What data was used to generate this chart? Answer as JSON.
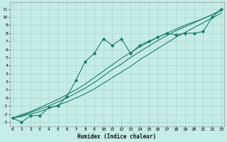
{
  "title": "",
  "xlabel": "Humidex (Indice chaleur)",
  "background_color": "#c5ece6",
  "grid_color": "#aed9d3",
  "line_color": "#1e7b6e",
  "x_ticks": [
    0,
    1,
    2,
    3,
    4,
    5,
    6,
    7,
    8,
    9,
    10,
    11,
    12,
    13,
    14,
    15,
    16,
    17,
    18,
    19,
    20,
    21,
    22,
    23
  ],
  "y_ticks": [
    -3,
    -2,
    -1,
    0,
    1,
    2,
    3,
    4,
    5,
    6,
    7,
    8,
    9,
    10,
    11
  ],
  "ylim": [
    -3.5,
    11.8
  ],
  "xlim": [
    -0.3,
    23.3
  ],
  "wiggly_y": [
    -2.5,
    -3.0,
    -2.2,
    -2.2,
    -1.2,
    -1.0,
    0.2,
    2.2,
    4.5,
    5.5,
    7.3,
    6.5,
    7.3,
    5.5,
    6.5,
    7.0,
    7.5,
    8.0,
    7.8,
    8.0,
    8.0,
    8.2,
    10.0,
    11.0
  ],
  "straight1_y": [
    -2.5,
    -2.3,
    -2.0,
    -1.7,
    -1.3,
    -0.9,
    -0.5,
    0.0,
    0.5,
    1.1,
    1.8,
    2.5,
    3.2,
    3.9,
    4.7,
    5.4,
    6.1,
    6.8,
    7.5,
    8.1,
    8.7,
    9.3,
    9.9,
    10.5
  ],
  "straight2_y": [
    -2.5,
    -2.2,
    -1.8,
    -1.4,
    -1.0,
    -0.5,
    0.0,
    0.6,
    1.2,
    1.9,
    2.7,
    3.5,
    4.2,
    5.0,
    5.7,
    6.4,
    7.1,
    7.7,
    8.3,
    8.8,
    9.3,
    9.8,
    10.3,
    10.8
  ],
  "straight3_y": [
    -2.5,
    -2.1,
    -1.7,
    -1.2,
    -0.7,
    -0.2,
    0.4,
    1.0,
    1.7,
    2.5,
    3.3,
    4.1,
    4.9,
    5.6,
    6.3,
    6.9,
    7.5,
    8.0,
    8.5,
    9.0,
    9.4,
    9.8,
    10.3,
    10.9
  ]
}
